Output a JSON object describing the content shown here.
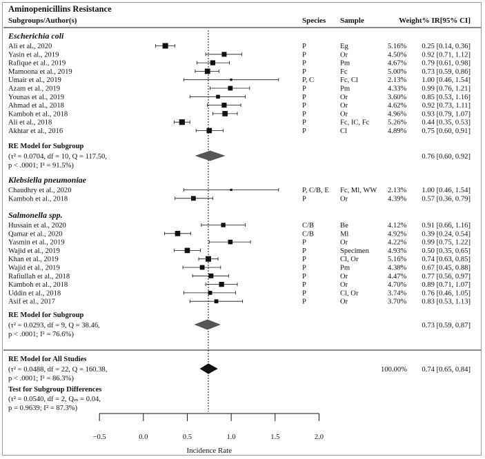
{
  "chart_data": {
    "type": "forest",
    "title": "Aminopenicillins Resistance",
    "header": {
      "col1": "Subgroups/Author(s)",
      "species": "Species",
      "sample": "Sample",
      "weight_ir": "Weight% IR[95% CI]"
    },
    "xlabel": "Incidence Rate",
    "xlim": [
      -0.5,
      2.0
    ],
    "xticks": [
      "−0.5",
      "0.0",
      "0.5",
      "1.0",
      "1.5",
      "2.0"
    ],
    "xtick_values": [
      -0.5,
      0.0,
      0.5,
      1.0,
      1.5,
      2.0
    ],
    "reference_line": 0.74,
    "subgroups": [
      {
        "name": "Escherichia coli",
        "studies": [
          {
            "author": "Ali et al., 2020",
            "species": "P",
            "sample": "Eg",
            "weight": "5.16%",
            "ci_text": "0.25 [0.14, 0.36]",
            "est": 0.25,
            "lo": 0.14,
            "hi": 0.36
          },
          {
            "author": "Yasin et al., 2019",
            "species": "P",
            "sample": "Or",
            "weight": "4.50%",
            "ci_text": "0.92 [0.71, 1.12]",
            "est": 0.92,
            "lo": 0.71,
            "hi": 1.12
          },
          {
            "author": "Rafique et al., 2019",
            "species": "P",
            "sample": "Pm",
            "weight": "4.67%",
            "ci_text": "0.79 [0.61, 0.98]",
            "est": 0.79,
            "lo": 0.61,
            "hi": 0.98
          },
          {
            "author": "Mamoona et al., 2019",
            "species": "P",
            "sample": "Fc",
            "weight": "5.00%",
            "ci_text": "0.73 [0.59, 0.86]",
            "est": 0.73,
            "lo": 0.59,
            "hi": 0.86
          },
          {
            "author": "Umair et al., 2019",
            "species": "P, C",
            "sample": "Fc, Cl",
            "weight": "2.13%",
            "ci_text": "1.00 [0.46, 1.54]",
            "est": 1.0,
            "lo": 0.46,
            "hi": 1.54
          },
          {
            "author": "Azam et al., 2019",
            "species": "P",
            "sample": "Pm",
            "weight": "4.33%",
            "ci_text": "0.99 [0.76, 1.21]",
            "est": 0.99,
            "lo": 0.76,
            "hi": 1.21
          },
          {
            "author": "Younas et al., 2019",
            "species": "P",
            "sample": "Or",
            "weight": "3.60%",
            "ci_text": "0.85 [0.53, 1.16]",
            "est": 0.85,
            "lo": 0.53,
            "hi": 1.16
          },
          {
            "author": "Ahmad et al., 2018",
            "species": "P",
            "sample": "Or",
            "weight": "4.62%",
            "ci_text": "0.92 [0.73, 1.11]",
            "est": 0.92,
            "lo": 0.73,
            "hi": 1.11
          },
          {
            "author": "Kamboh et al., 2018",
            "species": "P",
            "sample": "Or",
            "weight": "4.96%",
            "ci_text": "0.93 [0.79, 1.07]",
            "est": 0.93,
            "lo": 0.79,
            "hi": 1.07
          },
          {
            "author": "Ali et al., 2018",
            "species": "P",
            "sample": "Fc, IC, Fc",
            "weight": "5.26%",
            "ci_text": "0.44 [0.35, 0.53]",
            "est": 0.44,
            "lo": 0.35,
            "hi": 0.53
          },
          {
            "author": "Akhtar et al., 2016",
            "species": "P",
            "sample": "Cl",
            "weight": "4.89%",
            "ci_text": "0.75 [0.60, 0.91]",
            "est": 0.75,
            "lo": 0.6,
            "hi": 0.91
          }
        ],
        "model": {
          "label": "RE Model for Subgroup",
          "stats1": "(τ² = 0.0704, df = 10, Q = 117.50,",
          "stats2": "p < .0001; I² = 91.5%)",
          "ci_text": "0.76 [0.60, 0.92]",
          "est": 0.76,
          "lo": 0.6,
          "hi": 0.92
        }
      },
      {
        "name": "Klebsiella pneumoniae",
        "studies": [
          {
            "author": "Chaudhry et al., 2020",
            "species": "P, C/B, E",
            "sample": "Fc, Ml, WW",
            "weight": "2.13%",
            "ci_text": "1.00 [0.46, 1.54]",
            "est": 1.0,
            "lo": 0.46,
            "hi": 1.54
          },
          {
            "author": "Kamboh et al., 2018",
            "species": "P",
            "sample": "Or",
            "weight": "4.39%",
            "ci_text": "0.57 [0.36, 0.79]",
            "est": 0.57,
            "lo": 0.36,
            "hi": 0.79
          }
        ]
      },
      {
        "name": "Salmonella spp.",
        "studies": [
          {
            "author": "Hussain et al., 2020",
            "species": "C/B",
            "sample": "Be",
            "weight": "4.12%",
            "ci_text": "0.91 [0.66, 1.16]",
            "est": 0.91,
            "lo": 0.66,
            "hi": 1.16
          },
          {
            "author": "Qamar et al., 2020",
            "species": "C/B",
            "sample": "Ml",
            "weight": "4.92%",
            "ci_text": "0.39 [0.24, 0.54]",
            "est": 0.39,
            "lo": 0.24,
            "hi": 0.54
          },
          {
            "author": "Yasmin et al., 2019",
            "species": "P",
            "sample": "Or",
            "weight": "4.22%",
            "ci_text": "0.99 [0.75, 1.22]",
            "est": 0.99,
            "lo": 0.75,
            "hi": 1.22
          },
          {
            "author": "Wajid et al., 2019",
            "species": "P",
            "sample": "Specimen",
            "weight": "4.93%",
            "ci_text": "0.50 [0.35, 0.65]",
            "est": 0.5,
            "lo": 0.35,
            "hi": 0.65
          },
          {
            "author": "Khan et al., 2019",
            "species": "P",
            "sample": "Cl, Or",
            "weight": "5.16%",
            "ci_text": "0.74 [0.63, 0.85]",
            "est": 0.74,
            "lo": 0.63,
            "hi": 0.85
          },
          {
            "author": "Wajid et al., 2019",
            "species": "P",
            "sample": "Pm",
            "weight": "4.38%",
            "ci_text": "0.67 [0.45, 0.88]",
            "est": 0.67,
            "lo": 0.45,
            "hi": 0.88
          },
          {
            "author": "Rafiullah et al., 2018",
            "species": "P",
            "sample": "Or",
            "weight": "4.47%",
            "ci_text": "0.77 [0.56, 0.97]",
            "est": 0.77,
            "lo": 0.56,
            "hi": 0.97
          },
          {
            "author": "Kamboh et al., 2018",
            "species": "P",
            "sample": "Or",
            "weight": "4.70%",
            "ci_text": "0.89 [0.71, 1.07]",
            "est": 0.89,
            "lo": 0.71,
            "hi": 1.07
          },
          {
            "author": "Uddin et al., 2018",
            "species": "P",
            "sample": "Cl, Or",
            "weight": "3.74%",
            "ci_text": "0.76 [0.46, 1.05]",
            "est": 0.76,
            "lo": 0.46,
            "hi": 1.05
          },
          {
            "author": "Asif et al., 2017",
            "species": "P",
            "sample": "Or",
            "weight": "3.70%",
            "ci_text": "0.83 [0.53, 1.13]",
            "est": 0.83,
            "lo": 0.53,
            "hi": 1.13
          }
        ],
        "model": {
          "label": "RE Model for Subgroup",
          "stats1": "(τ² = 0.0293, df = 9, Q = 38.46,",
          "stats2": "p < .0001; I² = 76.6%)",
          "ci_text": "0.73 [0.59, 0.87]",
          "est": 0.73,
          "lo": 0.59,
          "hi": 0.87
        }
      }
    ],
    "overall": {
      "label": "RE Model for All Studies",
      "stats1": "(τ² = 0.0488, df = 22, Q = 160.38,",
      "stats2": "p < .0001; I² = 86.3%)",
      "weight": "100.00%",
      "ci_text": "0.74 [0.65, 0.84]",
      "est": 0.74,
      "lo": 0.65,
      "hi": 0.84
    },
    "subgroup_test": {
      "label": "Test for Subgroup Differences",
      "stats1": "(τ² = 0.0540, df = 2, Qₘ = 0.04,",
      "stats2": "p = 0.9639; I² = 87.3%)"
    }
  }
}
